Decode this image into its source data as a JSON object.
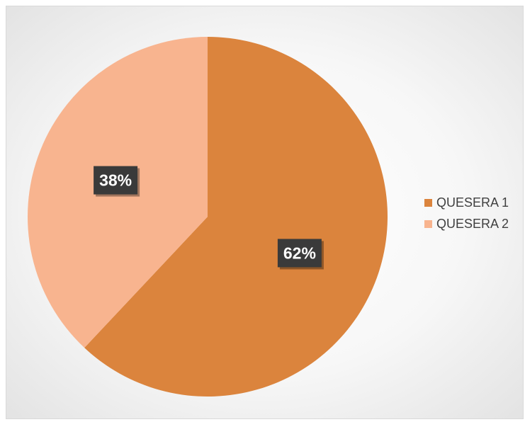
{
  "chart_data": {
    "type": "pie",
    "categories": [
      "QUESERA 1",
      "QUESERA 2"
    ],
    "values": [
      62,
      38
    ],
    "data_labels": [
      "62%",
      "38%"
    ],
    "colors": [
      "#DB843D",
      "#F8B48F"
    ],
    "legend_position": "right",
    "title": ""
  }
}
